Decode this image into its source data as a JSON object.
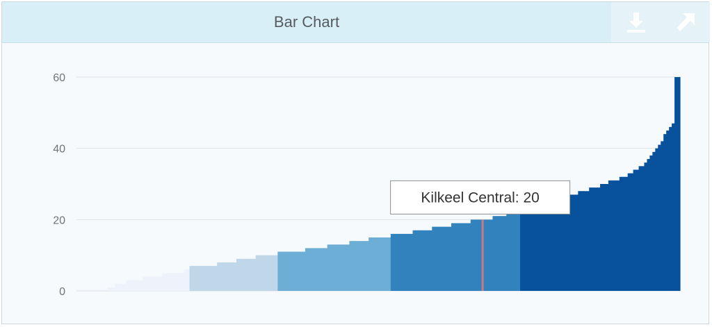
{
  "title": "Bar Chart",
  "toolbar": {
    "download_icon": "download-icon",
    "expand_icon": "expand-arrow-icon"
  },
  "tooltip": {
    "label": "Kilkeel Central",
    "value": 20,
    "text": "Kilkeel Central: 20"
  },
  "colors": {
    "header_bg": "#d9eff7",
    "grid": "#dde3e7",
    "highlight": "#c97a86",
    "palette": [
      "#eef2fb",
      "#c0d7e9",
      "#6caed6",
      "#3282bd",
      "#08519c"
    ]
  },
  "chart_data": {
    "type": "bar",
    "title": "Bar Chart",
    "xlabel": "",
    "ylabel": "",
    "ylim": [
      0,
      60
    ],
    "yticks": [
      0,
      20,
      40,
      60
    ],
    "grid": true,
    "legend": "none",
    "sorted": "ascending",
    "highlighted": {
      "label": "Kilkeel Central",
      "value": 20
    },
    "class_colors": [
      "#eef2fb",
      "#c0d7e9",
      "#6caed6",
      "#3282bd",
      "#08519c"
    ],
    "values": [
      0,
      0,
      0,
      0,
      0,
      0,
      0,
      0,
      0,
      0,
      0,
      1,
      1,
      1,
      2,
      2,
      2,
      2,
      3,
      3,
      3,
      3,
      3,
      3,
      4,
      4,
      4,
      4,
      4,
      4,
      4,
      5,
      5,
      5,
      5,
      5,
      5,
      5,
      5,
      6,
      6,
      7,
      7,
      7,
      7,
      7,
      7,
      7,
      7,
      7,
      7,
      8,
      8,
      8,
      8,
      8,
      8,
      8,
      9,
      9,
      9,
      9,
      9,
      9,
      9,
      10,
      10,
      10,
      10,
      10,
      10,
      10,
      10,
      11,
      11,
      11,
      11,
      11,
      11,
      11,
      11,
      11,
      11,
      12,
      12,
      12,
      12,
      12,
      12,
      12,
      12,
      13,
      13,
      13,
      13,
      13,
      13,
      13,
      13,
      14,
      14,
      14,
      14,
      14,
      14,
      14,
      15,
      15,
      15,
      15,
      15,
      15,
      15,
      15,
      16,
      16,
      16,
      16,
      16,
      16,
      16,
      16,
      17,
      17,
      17,
      17,
      17,
      17,
      17,
      18,
      18,
      18,
      18,
      18,
      18,
      18,
      19,
      19,
      19,
      19,
      19,
      19,
      19,
      20,
      20,
      20,
      20,
      20,
      20,
      20,
      20,
      21,
      21,
      21,
      21,
      21,
      22,
      22,
      22,
      22,
      22,
      23,
      23,
      23,
      23,
      23,
      23,
      24,
      24,
      24,
      24,
      25,
      25,
      25,
      25,
      26,
      26,
      26,
      26,
      27,
      27,
      27,
      28,
      28,
      28,
      28,
      29,
      29,
      29,
      29,
      30,
      30,
      30,
      31,
      31,
      31,
      31,
      32,
      32,
      32,
      33,
      33,
      34,
      34,
      35,
      35,
      36,
      37,
      38,
      39,
      40,
      41,
      42,
      44,
      45,
      46,
      47,
      60,
      60
    ]
  }
}
